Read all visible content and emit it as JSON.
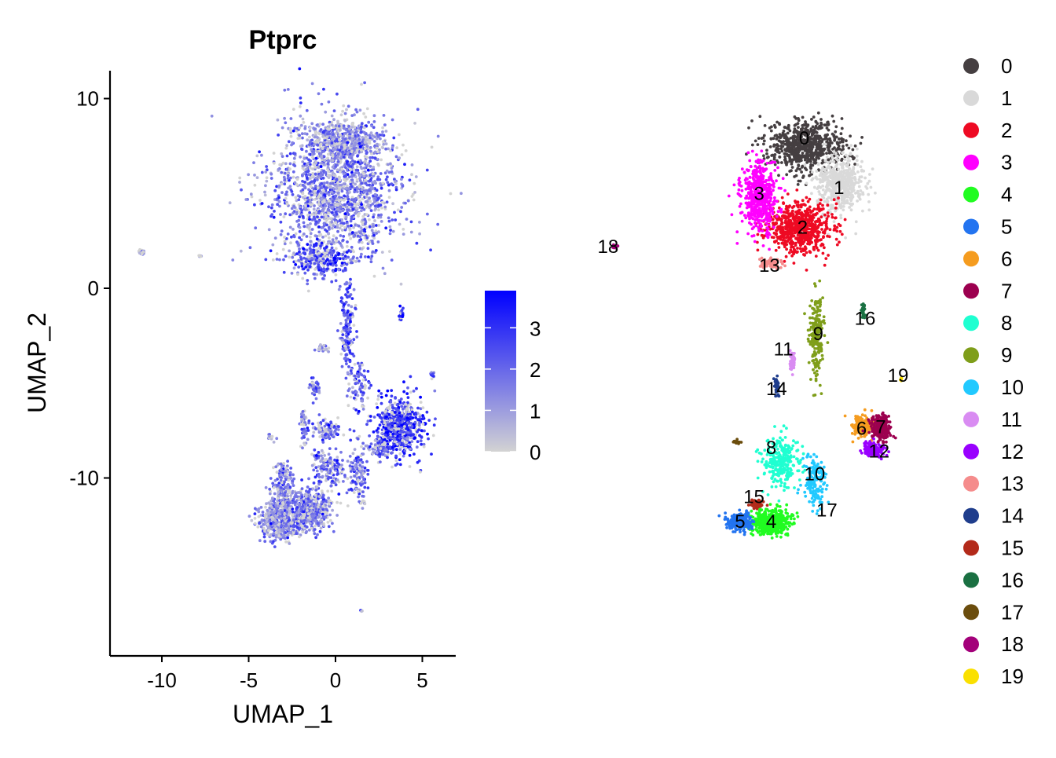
{
  "chart_data": [
    {
      "type": "scatter",
      "title": "Ptprc",
      "xlabel": "UMAP_1",
      "ylabel": "UMAP_2",
      "xlim": [
        -13,
        7
      ],
      "ylim": [
        -19,
        11.5
      ],
      "x_ticks": [
        -10,
        -5,
        0,
        5
      ],
      "y_ticks": [
        -10,
        0,
        10
      ],
      "x_tick_labels": [
        "-10",
        "-5",
        "0",
        "5"
      ],
      "y_tick_labels": [
        "-10",
        "0",
        "10"
      ],
      "color_scale": {
        "low": "#d3d3d3",
        "high": "#0000ff",
        "min": 0,
        "max": 3.9,
        "ticks": [
          0,
          1,
          2,
          3
        ],
        "tick_labels": [
          "0",
          "1",
          "2",
          "3"
        ]
      },
      "regions": [
        {
          "x": 0.1,
          "y": 5.2,
          "sx": 3.4,
          "sy": 3.2,
          "n": 1700,
          "expr": 1.7
        },
        {
          "x": 0.5,
          "y": 7.8,
          "sx": 1.9,
          "sy": 0.9,
          "n": 400,
          "expr": 1.3
        },
        {
          "x": -0.8,
          "y": 1.5,
          "sx": 1.5,
          "sy": 0.8,
          "n": 250,
          "expr": 2.4
        },
        {
          "x": 0.7,
          "y": -2.0,
          "sx": 0.35,
          "sy": 2.2,
          "n": 160,
          "expr": 2.3
        },
        {
          "x": 1.4,
          "y": -5.2,
          "sx": 0.45,
          "sy": 1.2,
          "n": 80,
          "expr": 2.0
        },
        {
          "x": 3.8,
          "y": -7.2,
          "sx": 1.3,
          "sy": 1.4,
          "n": 600,
          "expr": 2.8
        },
        {
          "x": 2.6,
          "y": -8.4,
          "sx": 0.6,
          "sy": 0.6,
          "n": 90,
          "expr": 2.2
        },
        {
          "x": -0.5,
          "y": -7.4,
          "sx": 0.7,
          "sy": 0.5,
          "n": 110,
          "expr": 1.8
        },
        {
          "x": -1.8,
          "y": -7.2,
          "sx": 0.25,
          "sy": 0.8,
          "n": 50,
          "expr": 2.0
        },
        {
          "x": -1.2,
          "y": -5.2,
          "sx": 0.3,
          "sy": 0.5,
          "n": 40,
          "expr": 1.8
        },
        {
          "x": -0.7,
          "y": -3.2,
          "sx": 0.3,
          "sy": 0.3,
          "n": 25,
          "expr": 0.8
        },
        {
          "x": -3.0,
          "y": -10.5,
          "sx": 0.6,
          "sy": 1.4,
          "n": 220,
          "expr": 1.5
        },
        {
          "x": 1.3,
          "y": -9.8,
          "sx": 0.5,
          "sy": 1.4,
          "n": 120,
          "expr": 2.0
        },
        {
          "x": -0.4,
          "y": -9.5,
          "sx": 0.9,
          "sy": 0.9,
          "n": 160,
          "expr": 1.9
        },
        {
          "x": -3.2,
          "y": -12.2,
          "sx": 1.2,
          "sy": 0.9,
          "n": 500,
          "expr": 1.5
        },
        {
          "x": -1.4,
          "y": -11.7,
          "sx": 1.0,
          "sy": 0.9,
          "n": 450,
          "expr": 1.6
        },
        {
          "x": 3.8,
          "y": -1.4,
          "sx": 0.12,
          "sy": 0.3,
          "n": 30,
          "expr": 2.8
        },
        {
          "x": 5.6,
          "y": -4.6,
          "sx": 0.1,
          "sy": 0.25,
          "n": 12,
          "expr": 2.5
        },
        {
          "x": -11.2,
          "y": 1.9,
          "sx": 0.2,
          "sy": 0.1,
          "n": 25,
          "expr": 0.0
        },
        {
          "x": -7.8,
          "y": 1.7,
          "sx": 0.1,
          "sy": 0.05,
          "n": 8,
          "expr": 0.0
        },
        {
          "x": -3.8,
          "y": -7.8,
          "sx": 0.15,
          "sy": 0.15,
          "n": 8,
          "expr": 0.1
        },
        {
          "x": 1.6,
          "y": -11.3,
          "sx": 0.1,
          "sy": 0.1,
          "n": 6,
          "expr": 0.1
        },
        {
          "x": 1.5,
          "y": -17.0,
          "sx": 0.05,
          "sy": 0.05,
          "n": 4,
          "expr": 0.1
        }
      ]
    },
    {
      "type": "scatter",
      "legend_position": "right",
      "clusters": [
        {
          "label": "0",
          "color": "#453f41",
          "x": 0.4,
          "y": 7.5,
          "sx": 2.0,
          "sy": 1.2,
          "n": 700,
          "label_x": 0.3,
          "label_y": 7.9
        },
        {
          "label": "1",
          "color": "#d9d9d9",
          "x": 2.4,
          "y": 5.5,
          "sx": 1.2,
          "sy": 1.3,
          "n": 520,
          "label_x": 2.3,
          "label_y": 5.3
        },
        {
          "label": "2",
          "color": "#ee0a23",
          "x": 0.0,
          "y": 3.2,
          "sx": 1.7,
          "sy": 1.2,
          "n": 650,
          "label_x": 0.2,
          "label_y": 3.2
        },
        {
          "label": "3",
          "color": "#ff00ff",
          "x": -2.3,
          "y": 4.8,
          "sx": 0.9,
          "sy": 1.6,
          "n": 520,
          "label_x": -2.3,
          "label_y": 5.0
        },
        {
          "label": "4",
          "color": "#21fc21",
          "x": -1.6,
          "y": -12.3,
          "sx": 1.0,
          "sy": 0.6,
          "n": 480,
          "label_x": -1.6,
          "label_y": -12.3
        },
        {
          "label": "5",
          "color": "#2374f0",
          "x": -3.4,
          "y": -12.3,
          "sx": 0.6,
          "sy": 0.4,
          "n": 280,
          "label_x": -3.4,
          "label_y": -12.3
        },
        {
          "label": "6",
          "color": "#f59c1f",
          "x": 3.6,
          "y": -7.3,
          "sx": 0.5,
          "sy": 0.5,
          "n": 230,
          "label_x": 3.6,
          "label_y": -7.4
        },
        {
          "label": "7",
          "color": "#9c004f",
          "x": 4.7,
          "y": -7.4,
          "sx": 0.5,
          "sy": 0.6,
          "n": 280,
          "label_x": 4.7,
          "label_y": -7.3
        },
        {
          "label": "8",
          "color": "#1fffd1",
          "x": -1.0,
          "y": -9.2,
          "sx": 1.0,
          "sy": 1.2,
          "n": 280,
          "label_x": -1.6,
          "label_y": -8.4
        },
        {
          "label": "9",
          "color": "#7f9e1a",
          "x": 1.0,
          "y": -2.5,
          "sx": 0.35,
          "sy": 2.1,
          "n": 210,
          "label_x": 1.1,
          "label_y": -2.4
        },
        {
          "label": "10",
          "color": "#21c9ff",
          "x": 0.9,
          "y": -10.2,
          "sx": 0.6,
          "sy": 1.3,
          "n": 160,
          "label_x": 0.9,
          "label_y": -9.8
        },
        {
          "label": "11",
          "color": "#d98cf2",
          "x": -0.4,
          "y": -3.8,
          "sx": 0.15,
          "sy": 0.5,
          "n": 45,
          "label_x": -0.9,
          "label_y": -3.2
        },
        {
          "label": "12",
          "color": "#9900ff",
          "x": 4.3,
          "y": -8.5,
          "sx": 0.6,
          "sy": 0.3,
          "n": 150,
          "label_x": 4.6,
          "label_y": -8.6
        },
        {
          "label": "13",
          "color": "#f58c8c",
          "x": -1.6,
          "y": 1.3,
          "sx": 0.6,
          "sy": 0.25,
          "n": 70,
          "label_x": -1.7,
          "label_y": 1.2
        },
        {
          "label": "14",
          "color": "#1f3d8c",
          "x": -1.3,
          "y": -5.2,
          "sx": 0.12,
          "sy": 0.45,
          "n": 40,
          "label_x": -1.3,
          "label_y": -5.3
        },
        {
          "label": "15",
          "color": "#b32a1a",
          "x": -2.4,
          "y": -11.4,
          "sx": 0.4,
          "sy": 0.2,
          "n": 50,
          "label_x": -2.6,
          "label_y": -11.0
        },
        {
          "label": "16",
          "color": "#1a7042",
          "x": 3.7,
          "y": -1.2,
          "sx": 0.1,
          "sy": 0.3,
          "n": 30,
          "label_x": 3.8,
          "label_y": -1.6
        },
        {
          "label": "17",
          "color": "#6b4d0d",
          "x": -3.5,
          "y": -8.1,
          "sx": 0.25,
          "sy": 0.15,
          "n": 12,
          "label_x": 1.6,
          "label_y": -11.7
        },
        {
          "label": "18",
          "color": "#a3007a",
          "x": -10.6,
          "y": 2.2,
          "sx": 0.15,
          "sy": 0.1,
          "n": 14,
          "label_x": -11.0,
          "label_y": 2.2
        },
        {
          "label": "19",
          "color": "#fae000",
          "x": 5.9,
          "y": -4.8,
          "sx": 0.08,
          "sy": 0.1,
          "n": 6,
          "label_x": 5.7,
          "label_y": -4.6
        }
      ]
    }
  ]
}
